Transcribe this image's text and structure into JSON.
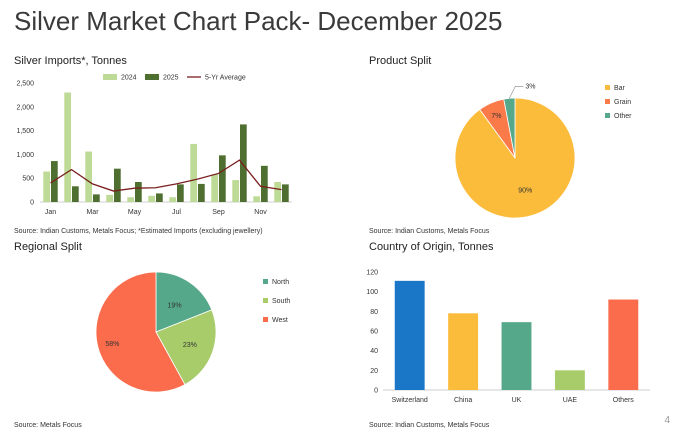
{
  "page": {
    "title": "Silver Market Chart Pack- December 2025",
    "page_number": "4"
  },
  "colors": {
    "bar2024": "#bddb96",
    "bar2025": "#4e6f30",
    "avgLine": "#7a1e1e",
    "bar": "#fbbc3c",
    "grain": "#fa7a4a",
    "other": "#55a88a",
    "north": "#55a88a",
    "south": "#a8cc6a",
    "west": "#fa6c4c",
    "switzerland": "#1a77c8",
    "china": "#fbbc3c",
    "uk": "#55a88a",
    "uae": "#a8cc6a",
    "others": "#fa6c4c",
    "axis": "#bfbfbf",
    "text": "#333333"
  },
  "imports": {
    "title": "Silver Imports*, Tonnes",
    "source": "Source: Indian Customs, Metals Focus; *Estimated Imports (excluding jewellery)"
  },
  "product": {
    "title": "Product Split",
    "source": "Source: Indian Customs, Metals Focus"
  },
  "regional": {
    "title": "Regional Split",
    "source": "Source: Metals Focus"
  },
  "country": {
    "title": "Country of Origin, Tonnes",
    "source": "Source: Indian Customs, Metals Focus"
  },
  "chart_data": [
    {
      "type": "bar",
      "title": "Silver Imports*, Tonnes",
      "categories": [
        "Jan",
        "Feb",
        "Mar",
        "Apr",
        "May",
        "Jun",
        "Jul",
        "Aug",
        "Sep",
        "Oct",
        "Nov",
        "Dec"
      ],
      "tick_labels": [
        "Jan",
        "Mar",
        "May",
        "Jul",
        "Sep",
        "Nov"
      ],
      "series": [
        {
          "name": "2024",
          "values": [
            640,
            2300,
            1060,
            150,
            100,
            130,
            100,
            1220,
            580,
            460,
            120,
            420
          ]
        },
        {
          "name": "2025",
          "values": [
            860,
            330,
            160,
            700,
            420,
            180,
            370,
            380,
            980,
            1630,
            760,
            370
          ]
        },
        {
          "name": "5-Yr Average",
          "kind": "line",
          "values": [
            400,
            680,
            380,
            230,
            290,
            300,
            380,
            480,
            600,
            880,
            330,
            260
          ]
        }
      ],
      "ylim": [
        0,
        2500
      ],
      "yticks": [
        "0",
        "500",
        "1,000",
        "1,500",
        "2,000",
        "2,500"
      ],
      "xlabel": "",
      "ylabel": "",
      "legend": "top"
    },
    {
      "type": "pie",
      "title": "Product Split",
      "labels": [
        "Bar",
        "Grain",
        "Other"
      ],
      "values": [
        90,
        7,
        3
      ],
      "value_labels": [
        "90%",
        "7%",
        "3%"
      ],
      "legend": "right"
    },
    {
      "type": "pie",
      "title": "Regional Split",
      "labels": [
        "North",
        "South",
        "West"
      ],
      "values": [
        19,
        23,
        58
      ],
      "value_labels": [
        "19%",
        "23%",
        "58%"
      ],
      "legend": "right"
    },
    {
      "type": "bar",
      "title": "Country of Origin, Tonnes",
      "categories": [
        "Switzerland",
        "China",
        "UK",
        "UAE",
        "Others"
      ],
      "values": [
        111,
        78,
        69,
        20,
        92
      ],
      "ylim": [
        0,
        120
      ],
      "yticks": [
        "0",
        "20",
        "40",
        "60",
        "80",
        "100",
        "120"
      ],
      "xlabel": "",
      "ylabel": ""
    }
  ]
}
